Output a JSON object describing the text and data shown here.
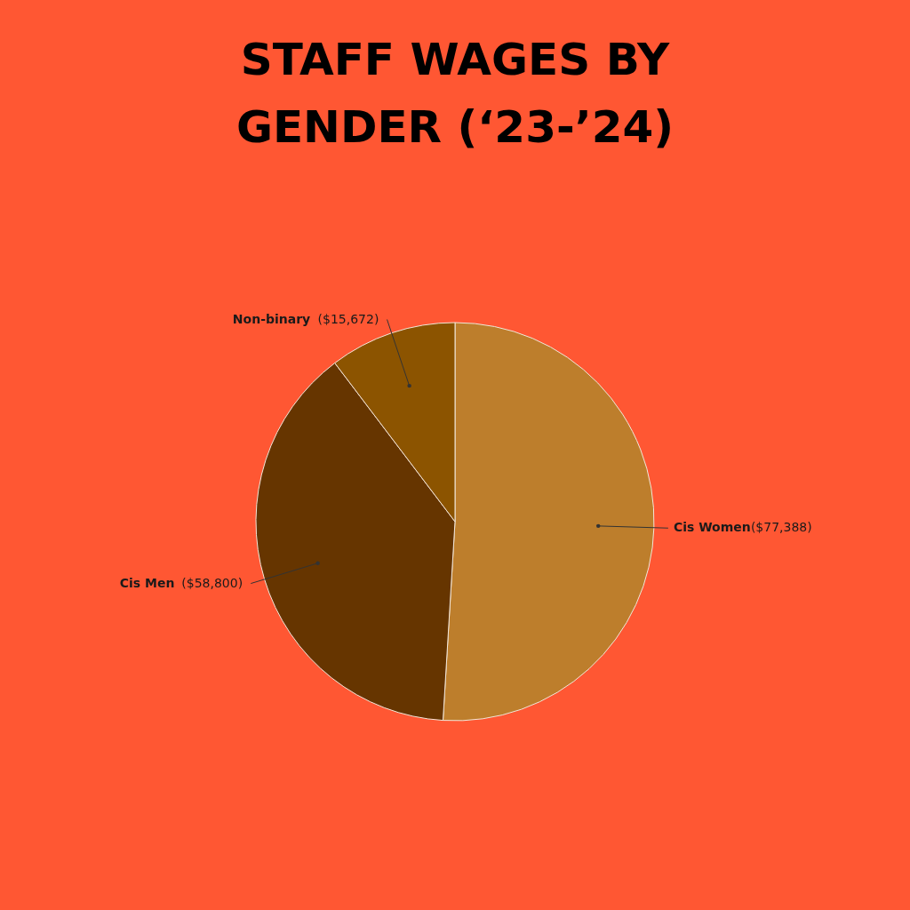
{
  "chart_data": {
    "type": "pie",
    "title": [
      "STAFF WAGES BY",
      "GENDER (‘23-’24)"
    ],
    "categories": [
      "Cis Women",
      "Cis Men",
      "Non-binary"
    ],
    "values": [
      77388,
      58800,
      15672
    ],
    "value_labels": [
      "($77,388)",
      "($58,800)",
      "($15,672)"
    ],
    "colors": [
      "#bd7e2c",
      "#663500",
      "#8c5400"
    ],
    "legend": false
  }
}
